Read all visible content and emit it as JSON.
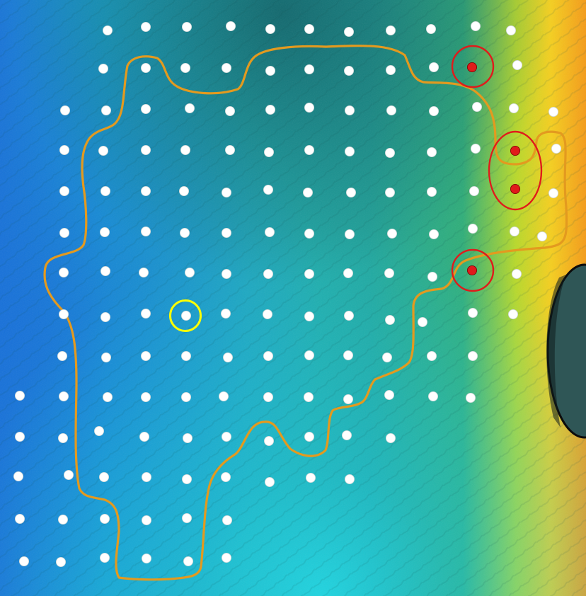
{
  "map": {
    "survey_point_color": "#ffffff",
    "flagged_point_color": "#e01b1b",
    "highlight_ring_color": "#ffff00",
    "boundary_color": "#e39a1f",
    "depth_colors": [
      "#1b7fd6",
      "#12a7c8",
      "#1bb6a5",
      "#31b47f",
      "#d4e41a",
      "#f7a719",
      "#e43a14"
    ]
  }
}
